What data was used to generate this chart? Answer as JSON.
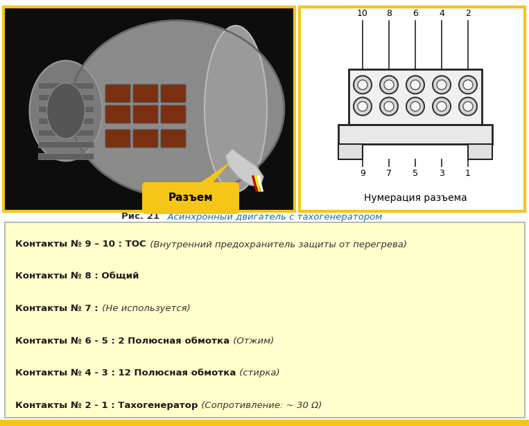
{
  "bg_color": "#ffffff",
  "caption_bold": "Рис. 21",
  "caption_italic": "  Асинхронный двигатель с тахогенератором",
  "caption_bold_color": "#333333",
  "caption_italic_color": "#1a6b9a",
  "box_bg": "#ffffcc",
  "box_border": "#aaaaaa",
  "box_lines": [
    {
      "bold": "Контакты № 9 – 10 : ТОС",
      "normal": " (Внутренний предохранитель защиты от перегрева)"
    },
    {
      "bold": "Контакты № 8 : Общий",
      "normal": ""
    },
    {
      "bold": "Контакты № 7 :",
      "normal": " (Не используется)"
    },
    {
      "bold": "Контакты № 6 - 5 : 2 Полюсная обмотка",
      "normal": " (Отжим)"
    },
    {
      "bold": "Контакты № 4 - 3 : 12 Полюсная обмотка",
      "normal": " (стирка)"
    },
    {
      "bold": "Контакты № 2 - 1 : Тахогенератор",
      "normal": " (Сопротивление: ~ 30 Ω)"
    }
  ],
  "yellow": "#f5c518",
  "connector_label": "Разъем",
  "numbering_label": "Нумерация разъема",
  "top_numbers": [
    "10",
    "8",
    "6",
    "4",
    "2"
  ],
  "bottom_numbers": [
    "9",
    "7",
    "5",
    "3",
    "1"
  ]
}
